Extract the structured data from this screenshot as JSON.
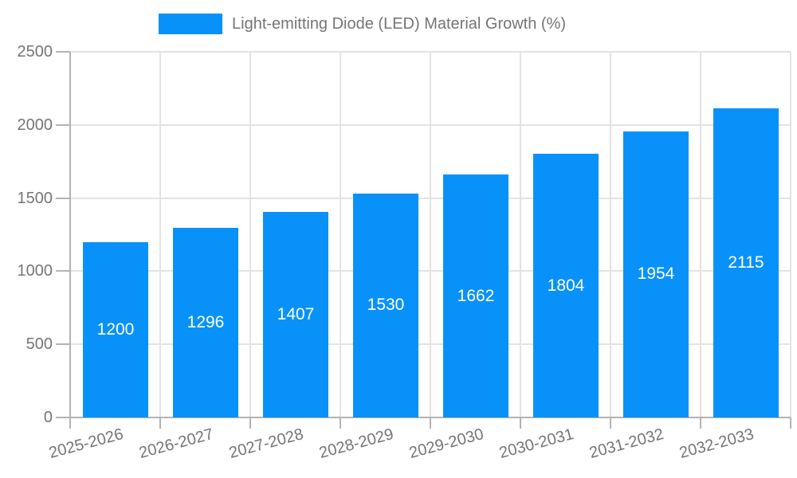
{
  "chart_data": {
    "type": "bar",
    "title": "",
    "xlabel": "",
    "ylabel": "",
    "legend_label": "Light-emitting Diode (LED) Material Growth (%)",
    "legend_position": "top",
    "categories": [
      "2025-2026",
      "2026-2027",
      "2027-2028",
      "2028-2029",
      "2029-2030",
      "2030-2031",
      "2031-2032",
      "2032-2033"
    ],
    "series": [
      {
        "name": "Light-emitting Diode (LED) Material Growth (%)",
        "values": [
          1200,
          1296,
          1407,
          1530,
          1662,
          1804,
          1954,
          2115
        ]
      }
    ],
    "ylim": [
      0,
      2500
    ],
    "yticks": [
      0,
      500,
      1000,
      1500,
      2000,
      2500
    ],
    "grid": "both",
    "bar_labels_inside": true
  },
  "colors": {
    "bar": "#0991fa",
    "bar_value_text": "#ffffff",
    "axis_text": "#757575",
    "gridline": "#e3e3e3",
    "axis_line": "#b3b3b3",
    "background": "#ffffff"
  }
}
